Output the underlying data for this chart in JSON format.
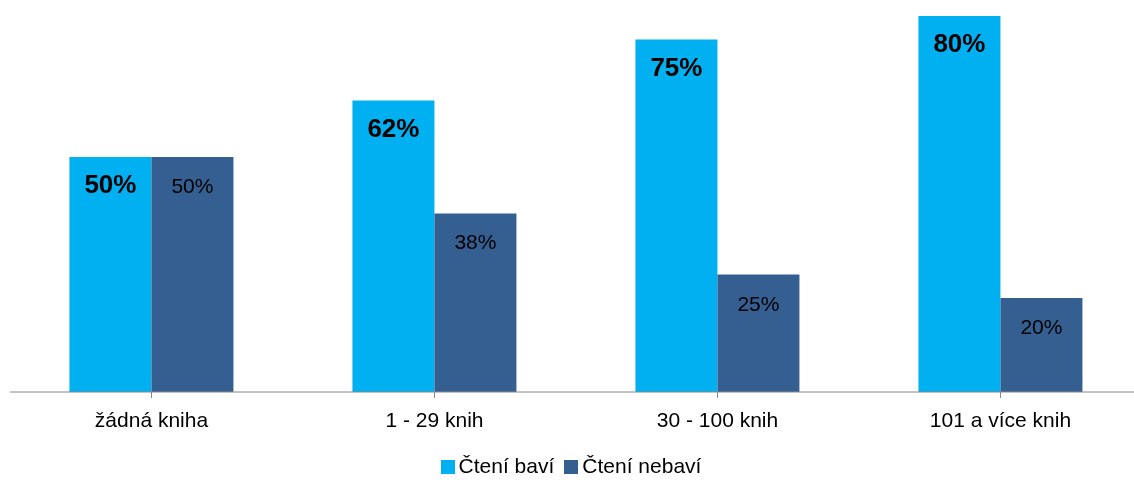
{
  "chart_data": {
    "type": "bar",
    "categories": [
      "žádná kniha",
      "1 - 29 knih",
      "30 - 100 knih",
      "101 a více knih"
    ],
    "series": [
      {
        "name": "Čtení baví",
        "color": "#00b0f0",
        "values": [
          50,
          62,
          75,
          80
        ],
        "value_labels": [
          "50%",
          "62%",
          "75%",
          "80%"
        ]
      },
      {
        "name": "Čtení nebaví",
        "color": "#355e91",
        "values": [
          50,
          38,
          25,
          20
        ],
        "value_labels": [
          "50%",
          "38%",
          "25%",
          "20%"
        ]
      }
    ],
    "legend": "bottom",
    "grid": false
  }
}
